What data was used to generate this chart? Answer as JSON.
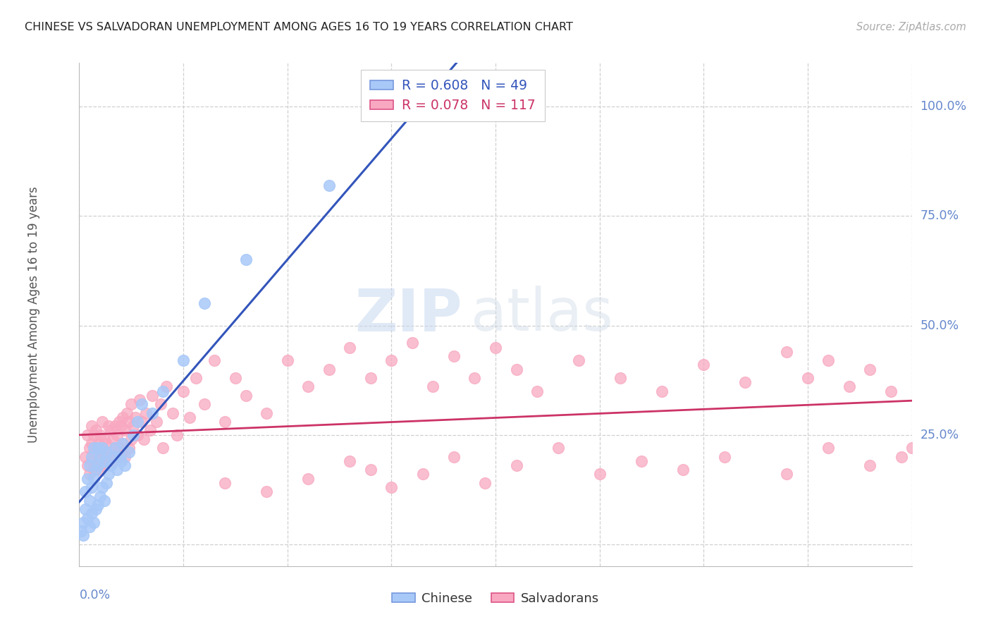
{
  "title": "CHINESE VS SALVADORAN UNEMPLOYMENT AMONG AGES 16 TO 19 YEARS CORRELATION CHART",
  "source": "Source: ZipAtlas.com",
  "ylabel": "Unemployment Among Ages 16 to 19 years",
  "watermark_zip": "ZIP",
  "watermark_atlas": "atlas",
  "legend_chinese_R": 0.608,
  "legend_chinese_N": 49,
  "legend_salvadoran_R": 0.078,
  "legend_salvadoran_N": 117,
  "chinese_color": "#a8c8f8",
  "salvadoran_color": "#f8a8c0",
  "trend_chinese_color": "#3355bb",
  "trend_salvadoran_color": "#cc3366",
  "background": "#ffffff",
  "grid_color": "#d0d0d0",
  "title_color": "#222222",
  "source_color": "#aaaaaa",
  "right_label_color": "#6688cc",
  "bottom_label_color": "#6688cc",
  "ylabel_color": "#555555",
  "xlim": [
    0.0,
    0.4
  ],
  "ylim": [
    -0.05,
    1.1
  ],
  "chinese_x": [
    0.001,
    0.002,
    0.002,
    0.003,
    0.003,
    0.004,
    0.004,
    0.005,
    0.005,
    0.005,
    0.006,
    0.006,
    0.006,
    0.007,
    0.007,
    0.007,
    0.008,
    0.008,
    0.009,
    0.009,
    0.009,
    0.01,
    0.01,
    0.011,
    0.011,
    0.012,
    0.012,
    0.013,
    0.013,
    0.014,
    0.015,
    0.016,
    0.017,
    0.018,
    0.019,
    0.02,
    0.021,
    0.022,
    0.024,
    0.026,
    0.028,
    0.03,
    0.035,
    0.04,
    0.05,
    0.06,
    0.08,
    0.12,
    0.19
  ],
  "chinese_y": [
    0.03,
    0.05,
    0.02,
    0.08,
    0.12,
    0.06,
    0.15,
    0.04,
    0.1,
    0.18,
    0.07,
    0.13,
    0.2,
    0.05,
    0.15,
    0.22,
    0.08,
    0.17,
    0.09,
    0.18,
    0.22,
    0.11,
    0.2,
    0.13,
    0.22,
    0.1,
    0.19,
    0.14,
    0.21,
    0.16,
    0.18,
    0.2,
    0.22,
    0.17,
    0.2,
    0.19,
    0.23,
    0.18,
    0.21,
    0.25,
    0.28,
    0.32,
    0.3,
    0.35,
    0.42,
    0.55,
    0.65,
    0.82,
    1.0
  ],
  "salvadoran_x": [
    0.003,
    0.004,
    0.004,
    0.005,
    0.005,
    0.006,
    0.006,
    0.006,
    0.007,
    0.007,
    0.007,
    0.008,
    0.008,
    0.008,
    0.009,
    0.009,
    0.01,
    0.01,
    0.01,
    0.011,
    0.011,
    0.011,
    0.012,
    0.012,
    0.013,
    0.013,
    0.014,
    0.014,
    0.015,
    0.015,
    0.016,
    0.016,
    0.017,
    0.017,
    0.018,
    0.018,
    0.019,
    0.019,
    0.02,
    0.02,
    0.021,
    0.021,
    0.022,
    0.022,
    0.023,
    0.024,
    0.024,
    0.025,
    0.025,
    0.026,
    0.027,
    0.028,
    0.029,
    0.03,
    0.031,
    0.032,
    0.034,
    0.035,
    0.037,
    0.039,
    0.04,
    0.042,
    0.045,
    0.047,
    0.05,
    0.053,
    0.056,
    0.06,
    0.065,
    0.07,
    0.075,
    0.08,
    0.09,
    0.1,
    0.11,
    0.12,
    0.13,
    0.14,
    0.15,
    0.16,
    0.17,
    0.18,
    0.19,
    0.2,
    0.21,
    0.22,
    0.24,
    0.26,
    0.28,
    0.3,
    0.32,
    0.34,
    0.35,
    0.36,
    0.37,
    0.38,
    0.39,
    0.395,
    0.4,
    0.38,
    0.36,
    0.34,
    0.31,
    0.29,
    0.27,
    0.25,
    0.23,
    0.21,
    0.195,
    0.18,
    0.165,
    0.15,
    0.14,
    0.13,
    0.11,
    0.09,
    0.07
  ],
  "salvadoran_y": [
    0.2,
    0.18,
    0.25,
    0.16,
    0.22,
    0.19,
    0.23,
    0.27,
    0.17,
    0.21,
    0.25,
    0.18,
    0.22,
    0.26,
    0.19,
    0.23,
    0.17,
    0.21,
    0.25,
    0.18,
    0.22,
    0.28,
    0.2,
    0.24,
    0.19,
    0.23,
    0.21,
    0.27,
    0.2,
    0.26,
    0.19,
    0.24,
    0.22,
    0.27,
    0.2,
    0.25,
    0.22,
    0.28,
    0.21,
    0.27,
    0.23,
    0.29,
    0.2,
    0.26,
    0.3,
    0.22,
    0.28,
    0.24,
    0.32,
    0.27,
    0.29,
    0.25,
    0.33,
    0.28,
    0.24,
    0.3,
    0.26,
    0.34,
    0.28,
    0.32,
    0.22,
    0.36,
    0.3,
    0.25,
    0.35,
    0.29,
    0.38,
    0.32,
    0.42,
    0.28,
    0.38,
    0.34,
    0.3,
    0.42,
    0.36,
    0.4,
    0.45,
    0.38,
    0.42,
    0.46,
    0.36,
    0.43,
    0.38,
    0.45,
    0.4,
    0.35,
    0.42,
    0.38,
    0.35,
    0.41,
    0.37,
    0.44,
    0.38,
    0.42,
    0.36,
    0.4,
    0.35,
    0.2,
    0.22,
    0.18,
    0.22,
    0.16,
    0.2,
    0.17,
    0.19,
    0.16,
    0.22,
    0.18,
    0.14,
    0.2,
    0.16,
    0.13,
    0.17,
    0.19,
    0.15,
    0.12,
    0.14
  ]
}
